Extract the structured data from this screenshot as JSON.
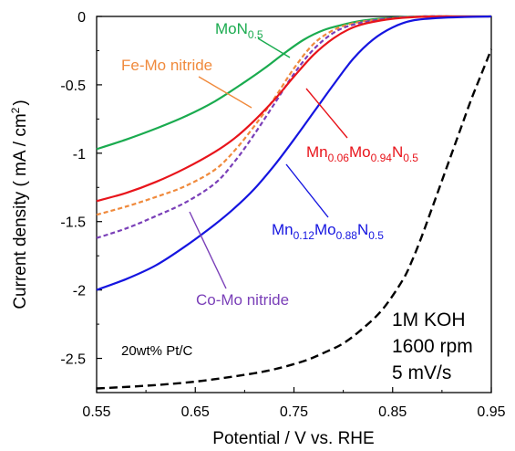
{
  "chart_data": {
    "type": "line",
    "xlabel": "Potential / V vs. RHE",
    "ylabel": "Current density ( mA / cm",
    "ylabel_sup": "2",
    "ylabel_close": ")",
    "xlim": [
      0.55,
      0.95
    ],
    "ylim": [
      -2.75,
      0.0
    ],
    "xticks": [
      "0.55",
      "0.65",
      "0.75",
      "0.85",
      "0.95"
    ],
    "yticks": [
      "0",
      "-0.5",
      "-1",
      "-1.5",
      "-2",
      "-2.5"
    ],
    "grid": false,
    "conditions": [
      "1M KOH",
      "1600 rpm",
      "5 mV/s"
    ],
    "series": [
      {
        "name": "MoN0.5",
        "label": {
          "base": "MoN",
          "sub": "0.5"
        },
        "color": "#1aab4f",
        "dash": "solid",
        "x": [
          0.55,
          0.58,
          0.61,
          0.64,
          0.67,
          0.7,
          0.72,
          0.74,
          0.76,
          0.78,
          0.8,
          0.82,
          0.85,
          0.88,
          0.91,
          0.95
        ],
        "y": [
          -0.97,
          -0.9,
          -0.82,
          -0.73,
          -0.62,
          -0.48,
          -0.38,
          -0.27,
          -0.17,
          -0.1,
          -0.06,
          -0.03,
          -0.01,
          0.0,
          0.0,
          0.0
        ]
      },
      {
        "name": "Fe-Mo nitride",
        "label": {
          "base": "Fe-Mo nitride",
          "sub": ""
        },
        "color": "#f08a3c",
        "dash": "dashed",
        "x": [
          0.55,
          0.58,
          0.61,
          0.64,
          0.67,
          0.69,
          0.71,
          0.73,
          0.75,
          0.77,
          0.79,
          0.81,
          0.84,
          0.88,
          0.91
        ],
        "y": [
          -1.45,
          -1.39,
          -1.32,
          -1.24,
          -1.12,
          -0.98,
          -0.8,
          -0.6,
          -0.38,
          -0.2,
          -0.1,
          -0.05,
          -0.02,
          0.0,
          0.0
        ]
      },
      {
        "name": "Co-Mo nitride",
        "label": {
          "base": "Co-Mo nitride",
          "sub": ""
        },
        "color": "#7a3fb8",
        "dash": "dashed",
        "x": [
          0.55,
          0.58,
          0.61,
          0.64,
          0.67,
          0.69,
          0.71,
          0.73,
          0.75,
          0.77,
          0.79,
          0.81,
          0.84,
          0.88,
          0.91
        ],
        "y": [
          -1.62,
          -1.55,
          -1.46,
          -1.36,
          -1.22,
          -1.06,
          -0.86,
          -0.64,
          -0.42,
          -0.24,
          -0.12,
          -0.06,
          -0.02,
          0.0,
          0.0
        ]
      },
      {
        "name": "Mn0.06Mo0.94N0.5",
        "label": {
          "base": "Mn",
          "sub": "0.06",
          "base2": "Mo",
          "sub2": "0.94",
          "base3": "N",
          "sub3": "0.5"
        },
        "color": "#e8141b",
        "dash": "solid",
        "x": [
          0.55,
          0.58,
          0.61,
          0.64,
          0.67,
          0.69,
          0.71,
          0.73,
          0.75,
          0.77,
          0.79,
          0.81,
          0.83,
          0.86,
          0.9,
          0.95
        ],
        "y": [
          -1.35,
          -1.29,
          -1.21,
          -1.11,
          -0.99,
          -0.89,
          -0.76,
          -0.61,
          -0.44,
          -0.28,
          -0.16,
          -0.08,
          -0.04,
          -0.01,
          0.0,
          0.0
        ]
      },
      {
        "name": "Mn0.12Mo0.88N0.5",
        "label": {
          "base": "Mn",
          "sub": "0.12",
          "base2": "Mo",
          "sub2": "0.88",
          "base3": "N",
          "sub3": "0.5"
        },
        "color": "#1515e0",
        "dash": "solid",
        "x": [
          0.55,
          0.58,
          0.61,
          0.64,
          0.67,
          0.69,
          0.71,
          0.73,
          0.75,
          0.77,
          0.79,
          0.81,
          0.83,
          0.85,
          0.87,
          0.9,
          0.95
        ],
        "y": [
          -2.0,
          -1.92,
          -1.82,
          -1.68,
          -1.52,
          -1.4,
          -1.26,
          -1.09,
          -0.9,
          -0.7,
          -0.5,
          -0.31,
          -0.17,
          -0.08,
          -0.03,
          -0.01,
          0.0
        ]
      },
      {
        "name": "20wt% Pt/C",
        "label": {
          "base": "20wt% Pt/C",
          "sub": ""
        },
        "color": "#000000",
        "dash": "dashed",
        "x": [
          0.55,
          0.6,
          0.65,
          0.7,
          0.73,
          0.76,
          0.78,
          0.8,
          0.82,
          0.84,
          0.86,
          0.87,
          0.88,
          0.89,
          0.9,
          0.91,
          0.92,
          0.93,
          0.94,
          0.95
        ],
        "y": [
          -2.72,
          -2.7,
          -2.67,
          -2.62,
          -2.58,
          -2.52,
          -2.46,
          -2.39,
          -2.28,
          -2.14,
          -1.93,
          -1.78,
          -1.6,
          -1.4,
          -1.2,
          -1.0,
          -0.8,
          -0.6,
          -0.42,
          -0.24
        ]
      }
    ]
  }
}
